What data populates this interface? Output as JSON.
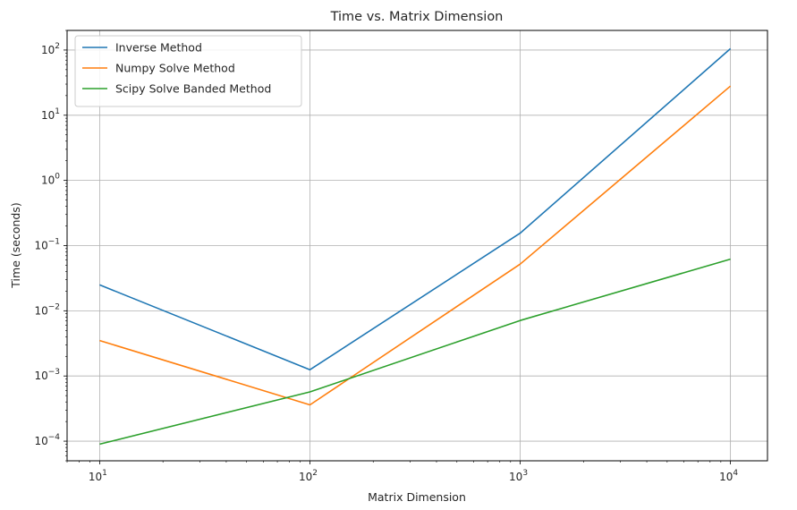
{
  "chart_data": {
    "type": "line",
    "title": "Time vs. Matrix Dimension",
    "xlabel": "Matrix Dimension",
    "ylabel": "Time (seconds)",
    "xscale": "log",
    "yscale": "log",
    "xlim": [
      7,
      15000
    ],
    "ylim": [
      5e-05,
      200
    ],
    "grid": true,
    "legend_position": "top-left",
    "x": [
      10,
      100,
      1000,
      10000
    ],
    "xticks": [
      {
        "base": "10",
        "exp": "1",
        "value": 10
      },
      {
        "base": "10",
        "exp": "2",
        "value": 100
      },
      {
        "base": "10",
        "exp": "3",
        "value": 1000
      },
      {
        "base": "10",
        "exp": "4",
        "value": 10000
      }
    ],
    "yticks": [
      {
        "base": "10",
        "exp": "−4",
        "value": 0.0001
      },
      {
        "base": "10",
        "exp": "−3",
        "value": 0.001
      },
      {
        "base": "10",
        "exp": "−2",
        "value": 0.01
      },
      {
        "base": "10",
        "exp": "−1",
        "value": 0.1
      },
      {
        "base": "10",
        "exp": "0",
        "value": 1
      },
      {
        "base": "10",
        "exp": "1",
        "value": 10
      },
      {
        "base": "10",
        "exp": "2",
        "value": 100
      }
    ],
    "series": [
      {
        "name": "Inverse Method",
        "color": "#1f77b4",
        "values": [
          0.025,
          0.00125,
          0.155,
          105
        ]
      },
      {
        "name": "Numpy Solve Method",
        "color": "#ff7f0e",
        "values": [
          0.0035,
          0.00036,
          0.052,
          28
        ]
      },
      {
        "name": "Scipy Solve Banded Method",
        "color": "#2ca02c",
        "values": [
          9e-05,
          0.00057,
          0.0071,
          0.062
        ]
      }
    ]
  }
}
